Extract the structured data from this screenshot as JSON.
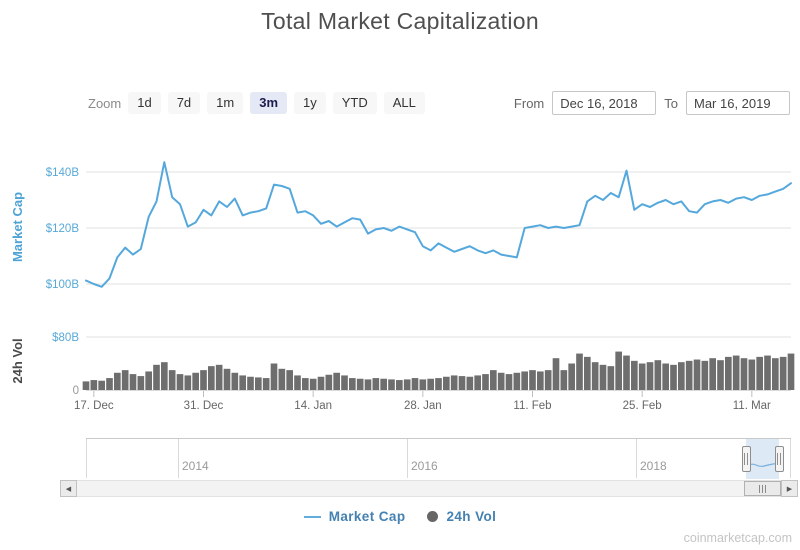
{
  "title": "Total Market Capitalization",
  "toolbar": {
    "zoom_label": "Zoom",
    "zoom_options": [
      "1d",
      "7d",
      "1m",
      "3m",
      "1y",
      "YTD",
      "ALL"
    ],
    "zoom_selected": "3m",
    "from_label": "From",
    "from_value": "Dec 16, 2018",
    "to_label": "To",
    "to_value": "Mar 16, 2019"
  },
  "chart_data": {
    "type": "line",
    "x": {
      "start": "Dec 16, 2018",
      "end": "Mar 16, 2019",
      "interval": "daily",
      "days": 91,
      "tick_labels": [
        "17. Dec",
        "31. Dec",
        "14. Jan",
        "28. Jan",
        "11. Feb",
        "25. Feb",
        "11. Mar"
      ],
      "tick_day_index": [
        1,
        15,
        29,
        43,
        57,
        71,
        85
      ]
    },
    "market_cap": {
      "type": "line",
      "name": "Market Cap",
      "axis_title": "Market Cap",
      "color": "#55a8dc",
      "unit": "$B",
      "ylim": [
        95,
        148
      ],
      "y_ticks": [
        {
          "value": 100,
          "label": "$100B"
        },
        {
          "value": 120,
          "label": "$120B"
        },
        {
          "value": 140,
          "label": "$140B"
        }
      ],
      "values": [
        101.2,
        100.0,
        99.0,
        102.0,
        109.5,
        113.0,
        110.5,
        112.5,
        124.0,
        129.5,
        143.5,
        131.0,
        128.5,
        120.5,
        122.0,
        126.5,
        124.5,
        129.5,
        127.5,
        130.5,
        124.5,
        125.5,
        126.0,
        127.0,
        135.5,
        135.0,
        134.0,
        125.5,
        126.0,
        124.5,
        121.5,
        122.5,
        120.5,
        122.0,
        123.5,
        123.0,
        118.0,
        119.5,
        120.0,
        119.0,
        120.5,
        119.5,
        118.5,
        113.5,
        112.0,
        114.5,
        113.0,
        111.5,
        112.5,
        113.5,
        112.0,
        111.0,
        112.0,
        110.5,
        110.0,
        109.5,
        120.0,
        120.5,
        121.0,
        120.0,
        120.5,
        120.0,
        120.5,
        121.0,
        129.5,
        131.5,
        130.0,
        132.5,
        131.0,
        140.5,
        126.5,
        128.5,
        127.5,
        129.0,
        130.0,
        128.5,
        129.5,
        126.0,
        125.5,
        128.5,
        129.5,
        130.0,
        129.0,
        130.5,
        131.0,
        130.0,
        131.5,
        132.0,
        133.0,
        134.0,
        136.0
      ]
    },
    "volume": {
      "type": "column",
      "name": "24h Vol",
      "axis_title": "24h Vol",
      "color": "#6e6e6e",
      "unit": "$B",
      "ylim": [
        0,
        80
      ],
      "y_ticks": [
        {
          "value": 0,
          "label": "0",
          "color": "#999999"
        },
        {
          "value": 80,
          "label": "$80B",
          "color": "#58a9d8"
        }
      ],
      "values": [
        13,
        15,
        14,
        18,
        26,
        30,
        24,
        21,
        28,
        38,
        42,
        30,
        24,
        22,
        26,
        30,
        36,
        38,
        32,
        26,
        22,
        20,
        19,
        18,
        40,
        32,
        30,
        22,
        18,
        17,
        20,
        23,
        26,
        22,
        18,
        17,
        16,
        18,
        17,
        16,
        15,
        16,
        18,
        16,
        17,
        18,
        20,
        22,
        21,
        20,
        22,
        24,
        30,
        26,
        24,
        26,
        28,
        30,
        28,
        30,
        48,
        30,
        40,
        55,
        50,
        42,
        38,
        36,
        58,
        52,
        44,
        40,
        42,
        45,
        40,
        38,
        42,
        44,
        46,
        44,
        48,
        45,
        50,
        52,
        48,
        46,
        50,
        52,
        48,
        50,
        55
      ]
    },
    "grid": true,
    "legend_position": "bottom"
  },
  "navigator": {
    "year_labels": [
      "2014",
      "2016",
      "2018"
    ],
    "selected_range": {
      "from": "Dec 16, 2018",
      "to": "Mar 16, 2019"
    }
  },
  "legend": [
    {
      "label": "Market Cap",
      "symbol": "line",
      "color": "#61acdc"
    },
    {
      "label": "24h Vol",
      "symbol": "circle",
      "color": "#666666"
    }
  ],
  "watermark": "coinmarketcap.com",
  "colors": {
    "accent_blue": "#55a8dc",
    "volume_gray": "#6e6e6e",
    "legend_text": "#4581b1",
    "grid": "#e2e2e2"
  }
}
